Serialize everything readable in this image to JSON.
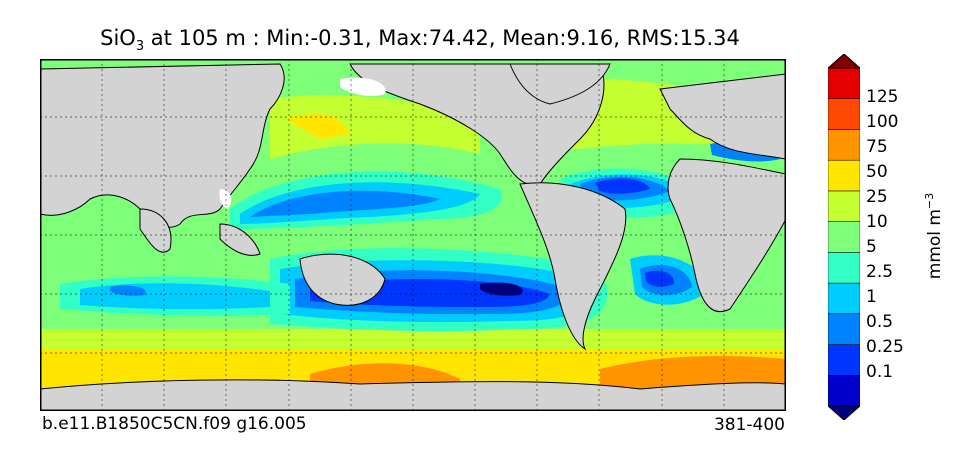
{
  "title": {
    "species": "SiO",
    "subscript": "3",
    "text": " at 105 m : Min:-0.31, Max:74.42, Mean:9.16, RMS:15.34"
  },
  "colorbar": {
    "ticks": [
      "125",
      "100",
      "75",
      "50",
      "25",
      "10",
      "5",
      "2.5",
      "1",
      "0.5",
      "0.25",
      "0.1"
    ],
    "colors": [
      "#00007f",
      "#0000cd",
      "#0035ff",
      "#0083ff",
      "#00cdff",
      "#32ffc4",
      "#7dff7a",
      "#c4ff32",
      "#ffe500",
      "#ff9400",
      "#ff4900",
      "#e50000",
      "#7f0000"
    ],
    "unit": "mmol m",
    "unit_exp": "−3"
  },
  "footer": {
    "case": "b.e11.B1850C5CN.f09 g16.005",
    "years": "381-400"
  }
}
